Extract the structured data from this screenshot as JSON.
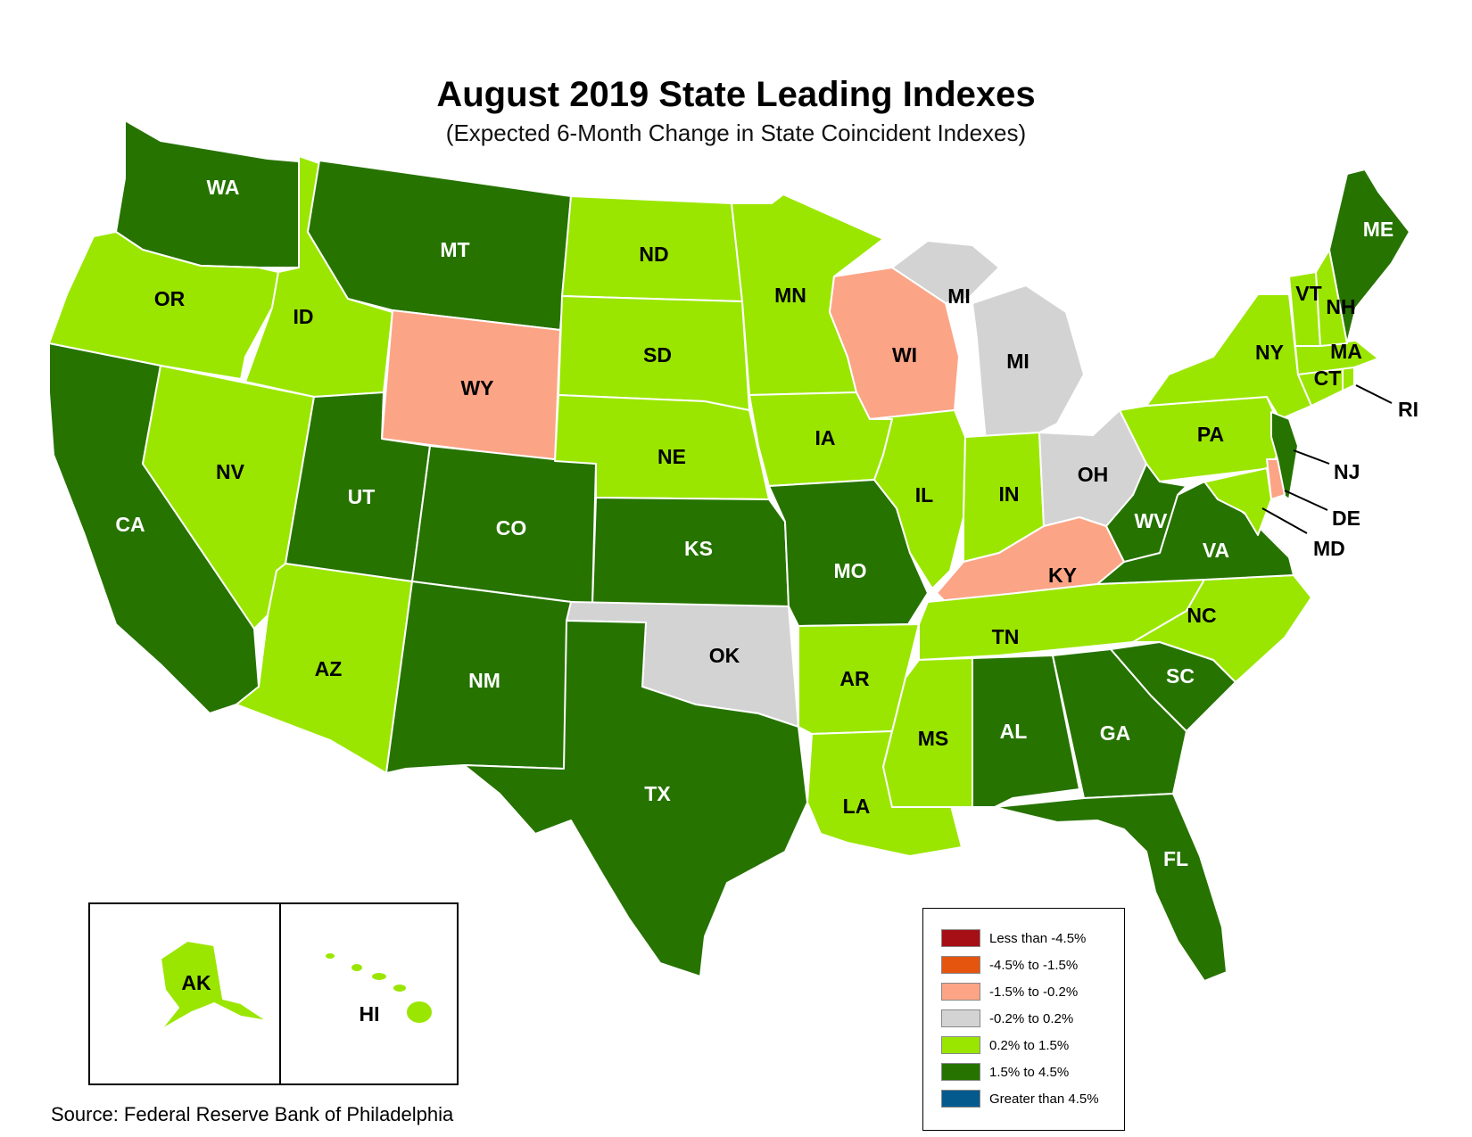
{
  "title": "August 2019 State Leading Indexes",
  "subtitle": "(Expected 6-Month Change in State Coincident Indexes)",
  "source": "Source: Federal Reserve Bank of Philadelphia",
  "legend": [
    {
      "label": "Less than -4.5%",
      "color": "#a50f15"
    },
    {
      "label": "-4.5% to -1.5%",
      "color": "#e6550d"
    },
    {
      "label": "-1.5% to -0.2%",
      "color": "#fca486"
    },
    {
      "label": "-0.2% to 0.2%",
      "color": "#d3d3d3"
    },
    {
      "label": "0.2% to 1.5%",
      "color": "#9ae600"
    },
    {
      "label": "1.5% to 4.5%",
      "color": "#267300"
    },
    {
      "label": "Greater than 4.5%",
      "color": "#045a8d"
    }
  ],
  "states": {
    "WA": {
      "label": "WA",
      "category": "1.5% to 4.5%"
    },
    "OR": {
      "label": "OR",
      "category": "0.2% to 1.5%"
    },
    "CA": {
      "label": "CA",
      "category": "1.5% to 4.5%"
    },
    "ID": {
      "label": "ID",
      "category": "0.2% to 1.5%"
    },
    "NV": {
      "label": "NV",
      "category": "0.2% to 1.5%"
    },
    "MT": {
      "label": "MT",
      "category": "1.5% to 4.5%"
    },
    "WY": {
      "label": "WY",
      "category": "-1.5% to -0.2%"
    },
    "UT": {
      "label": "UT",
      "category": "1.5% to 4.5%"
    },
    "AZ": {
      "label": "AZ",
      "category": "0.2% to 1.5%"
    },
    "CO": {
      "label": "CO",
      "category": "1.5% to 4.5%"
    },
    "NM": {
      "label": "NM",
      "category": "1.5% to 4.5%"
    },
    "ND": {
      "label": "ND",
      "category": "0.2% to 1.5%"
    },
    "SD": {
      "label": "SD",
      "category": "0.2% to 1.5%"
    },
    "NE": {
      "label": "NE",
      "category": "0.2% to 1.5%"
    },
    "KS": {
      "label": "KS",
      "category": "1.5% to 4.5%"
    },
    "OK": {
      "label": "OK",
      "category": "-0.2% to 0.2%"
    },
    "TX": {
      "label": "TX",
      "category": "1.5% to 4.5%"
    },
    "MN": {
      "label": "MN",
      "category": "0.2% to 1.5%"
    },
    "IA": {
      "label": "IA",
      "category": "0.2% to 1.5%"
    },
    "MO": {
      "label": "MO",
      "category": "1.5% to 4.5%"
    },
    "AR": {
      "label": "AR",
      "category": "0.2% to 1.5%"
    },
    "LA": {
      "label": "LA",
      "category": "0.2% to 1.5%"
    },
    "WI": {
      "label": "WI",
      "category": "-1.5% to -0.2%"
    },
    "IL": {
      "label": "IL",
      "category": "0.2% to 1.5%"
    },
    "MI": {
      "label": "MI",
      "category": "-0.2% to 0.2%"
    },
    "IN": {
      "label": "IN",
      "category": "0.2% to 1.5%"
    },
    "OH": {
      "label": "OH",
      "category": "-0.2% to 0.2%"
    },
    "KY": {
      "label": "KY",
      "category": "-1.5% to -0.2%"
    },
    "TN": {
      "label": "TN",
      "category": "0.2% to 1.5%"
    },
    "MS": {
      "label": "MS",
      "category": "0.2% to 1.5%"
    },
    "AL": {
      "label": "AL",
      "category": "1.5% to 4.5%"
    },
    "GA": {
      "label": "GA",
      "category": "1.5% to 4.5%"
    },
    "FL": {
      "label": "FL",
      "category": "1.5% to 4.5%"
    },
    "SC": {
      "label": "SC",
      "category": "1.5% to 4.5%"
    },
    "NC": {
      "label": "NC",
      "category": "0.2% to 1.5%"
    },
    "VA": {
      "label": "VA",
      "category": "1.5% to 4.5%"
    },
    "WV": {
      "label": "WV",
      "category": "1.5% to 4.5%"
    },
    "PA": {
      "label": "PA",
      "category": "0.2% to 1.5%"
    },
    "NY": {
      "label": "NY",
      "category": "0.2% to 1.5%"
    },
    "NJ": {
      "label": "NJ",
      "category": "1.5% to 4.5%"
    },
    "DE": {
      "label": "DE",
      "category": "-1.5% to -0.2%"
    },
    "MD": {
      "label": "MD",
      "category": "0.2% to 1.5%"
    },
    "CT": {
      "label": "CT",
      "category": "0.2% to 1.5%"
    },
    "RI": {
      "label": "RI",
      "category": "0.2% to 1.5%"
    },
    "MA": {
      "label": "MA",
      "category": "0.2% to 1.5%"
    },
    "VT": {
      "label": "VT",
      "category": "0.2% to 1.5%"
    },
    "NH": {
      "label": "NH",
      "category": "0.2% to 1.5%"
    },
    "ME": {
      "label": "ME",
      "category": "1.5% to 4.5%"
    },
    "AK": {
      "label": "AK",
      "category": "0.2% to 1.5%"
    },
    "HI": {
      "label": "HI",
      "category": "0.2% to 1.5%"
    }
  }
}
